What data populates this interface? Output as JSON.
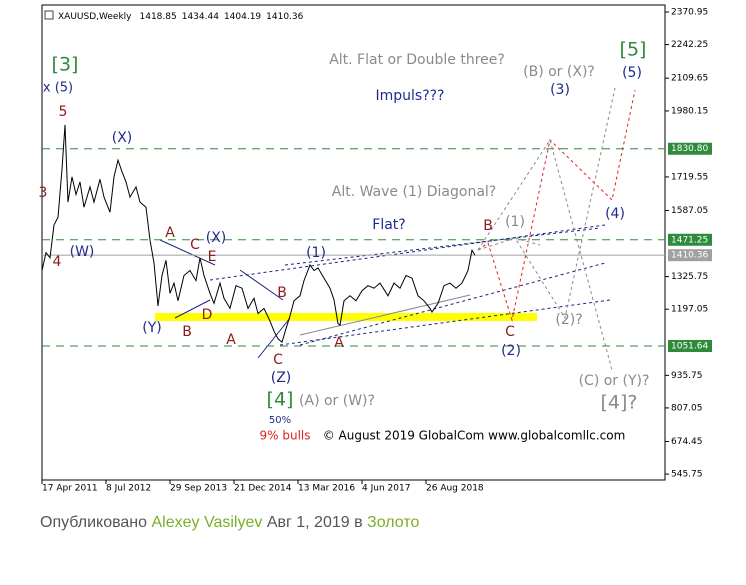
{
  "chart_data": {
    "type": "line",
    "title": "XAUUSD,Weekly",
    "ohlc": [
      1418.85,
      1434.44,
      1404.19,
      1410.36
    ],
    "series": [
      {
        "color": "#000000",
        "x": [
          0,
          4,
          8,
          12,
          16,
          20,
          23,
          26,
          30,
          34,
          38,
          42,
          48,
          52,
          58,
          62,
          68,
          72,
          76,
          80,
          84,
          88,
          94,
          98,
          104,
          108,
          112,
          116,
          120,
          124,
          128,
          132,
          136,
          142,
          148,
          154,
          158,
          162,
          168,
          172,
          178,
          182,
          188,
          194,
          200,
          206,
          212,
          216,
          222,
          228,
          232,
          236,
          240,
          244,
          248,
          252,
          258,
          262,
          268,
          272,
          276,
          282,
          288,
          292,
          296,
          298,
          302,
          308,
          314,
          320,
          326,
          332,
          338,
          346,
          352,
          358,
          364,
          370,
          376,
          382,
          388,
          390,
          396,
          402,
          408,
          414,
          420,
          426,
          430,
          433
        ],
        "values": [
          1350,
          1420,
          1400,
          1530,
          1560,
          1750,
          1925,
          1620,
          1720,
          1650,
          1700,
          1600,
          1680,
          1620,
          1710,
          1640,
          1580,
          1720,
          1786,
          1740,
          1700,
          1640,
          1680,
          1620,
          1600,
          1470,
          1380,
          1210,
          1330,
          1390,
          1260,
          1300,
          1230,
          1330,
          1350,
          1310,
          1400,
          1330,
          1260,
          1220,
          1300,
          1240,
          1200,
          1290,
          1280,
          1200,
          1240,
          1180,
          1200,
          1150,
          1110,
          1080,
          1067,
          1120,
          1170,
          1230,
          1250,
          1310,
          1372,
          1350,
          1360,
          1320,
          1280,
          1234,
          1140,
          1134,
          1230,
          1250,
          1230,
          1270,
          1290,
          1280,
          1300,
          1250,
          1300,
          1280,
          1330,
          1320,
          1250,
          1230,
          1200,
          1186,
          1220,
          1290,
          1300,
          1280,
          1300,
          1350,
          1430,
          1410
        ]
      }
    ],
    "xlim": [
      0,
      623
    ],
    "xticks": [
      {
        "value": 0,
        "label": "17 Apr 2011"
      },
      {
        "value": 64,
        "label": "8 Jul 2012"
      },
      {
        "value": 128,
        "label": "29 Sep 2013"
      },
      {
        "value": 192,
        "label": "21 Dec 2014"
      },
      {
        "value": 256,
        "label": "13 Mar 2016"
      },
      {
        "value": 320,
        "label": "4 Jun 2017"
      },
      {
        "value": 384,
        "label": "26 Aug 2018"
      }
    ],
    "ylim": [
      522.35,
      2398.6
    ],
    "yticks": [
      2370.95,
      2242.25,
      2109.65,
      1980.15,
      1719.55,
      1587.05,
      1325.75,
      1197.05,
      935.75,
      807.05,
      674.45,
      545.75
    ],
    "levels": [
      {
        "value": 1830.8,
        "label": "1830.80",
        "color": "#2e8b3a"
      },
      {
        "value": 1471.25,
        "label": "1471.25",
        "color": "#2e8b3a"
      },
      {
        "value": 1410.36,
        "label": "1410.36",
        "color": "#a0a0a0"
      },
      {
        "value": 1051.64,
        "label": "1051.64",
        "color": "#2e8b3a"
      }
    ],
    "annotations": [
      "[3]",
      "x (5)",
      "5",
      "(X)",
      "3",
      "(W)",
      "4",
      "A",
      "C",
      "(X)",
      "E",
      "D",
      "(Y)",
      "B",
      "A",
      "B",
      "C",
      "(Z)",
      "(1)",
      "A",
      "[4]",
      "(A) or (W)?",
      "50%",
      "9% bulls",
      "© August 2019 GlobalCom www.globalcomllc.com",
      "Alt. Flat or Double three?",
      "Impuls???",
      "Alt. Wave (1) Diagonal?",
      "Flat?",
      "B",
      "(1)",
      "C",
      "(2)",
      "(2)?",
      "(B) or (X)?",
      "(3)",
      "[5]",
      "(5)",
      "(4)",
      "(C) or (Y)?",
      "[4]?"
    ]
  },
  "footer": {
    "parts": [
      "Опубликовано",
      "Alexey Vasilyev",
      "Авг 1, 2019 в",
      "Золото"
    ]
  }
}
